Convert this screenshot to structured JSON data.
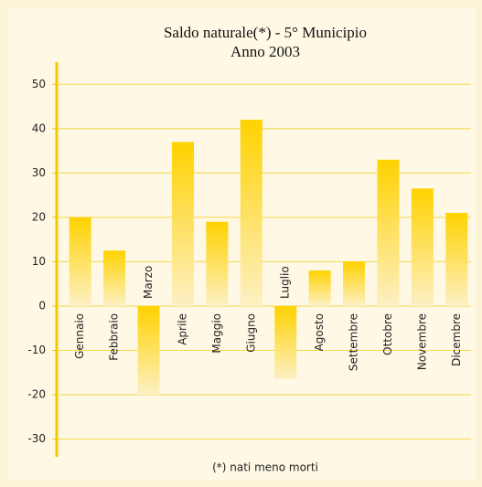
{
  "chart_data": {
    "type": "bar",
    "title": "Saldo naturale(*) - 5° Municipio",
    "subtitle": "Anno 2003",
    "note": "(*) nati meno morti",
    "categories": [
      "Gennaio",
      "Febbraio",
      "Marzo",
      "Aprile",
      "Maggio",
      "Giugno",
      "Luglio",
      "Agosto",
      "Settembre",
      "Ottobre",
      "Novembre",
      "Dicembre"
    ],
    "values": [
      20,
      12.5,
      -20,
      37,
      19,
      42,
      -16.5,
      8,
      10,
      33,
      26.5,
      21
    ],
    "color": "#ffd200",
    "ylim": [
      -34,
      55
    ],
    "yticks": [
      -30,
      -20,
      -10,
      0,
      10,
      20,
      30,
      40,
      50
    ],
    "grid": true
  }
}
